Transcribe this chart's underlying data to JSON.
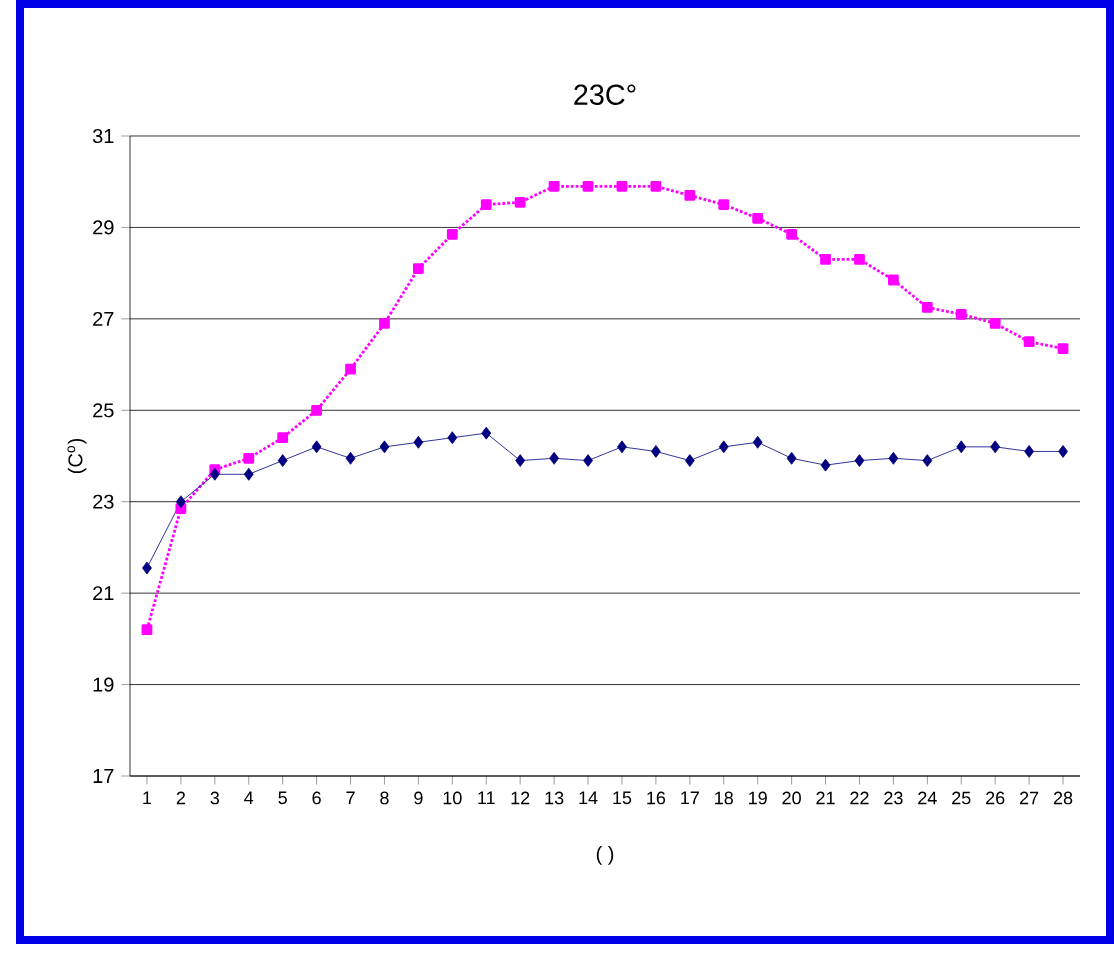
{
  "chart_data": {
    "type": "line",
    "title": "23C°",
    "ylabel": "(C$^{o}$)",
    "xlabel": "(   )",
    "categories": [
      "1",
      "2",
      "3",
      "4",
      "5",
      "6",
      "7",
      "8",
      "9",
      "10",
      "11",
      "12",
      "13",
      "14",
      "15",
      "16",
      "17",
      "18",
      "19",
      "20",
      "21",
      "22",
      "23",
      "24",
      "25",
      "26",
      "27",
      "28"
    ],
    "series": [
      {
        "color": "#000080",
        "marker": "diamond",
        "line_style": "solid",
        "values": [
          21.55,
          23.0,
          23.6,
          23.6,
          23.9,
          24.2,
          23.95,
          24.2,
          24.3,
          24.4,
          24.5,
          23.9,
          23.95,
          23.9,
          24.2,
          24.1,
          23.9,
          24.2,
          24.3,
          23.95,
          23.8,
          23.9,
          23.95,
          23.9,
          24.2,
          24.2,
          24.1,
          24.1
        ]
      },
      {
        "color": "#ff00ff",
        "marker": "square",
        "line_style": "dotted",
        "values": [
          20.2,
          22.85,
          23.7,
          23.95,
          24.4,
          25.0,
          25.9,
          26.9,
          28.1,
          28.85,
          29.5,
          29.55,
          29.9,
          29.9,
          29.9,
          29.9,
          29.7,
          29.5,
          29.2,
          28.85,
          28.3,
          28.3,
          27.85,
          27.25,
          27.1,
          26.9,
          26.5,
          26.35
        ]
      }
    ],
    "ylim": [
      17,
      31
    ],
    "yticks": [
      17,
      19,
      21,
      23,
      25,
      27,
      29,
      31
    ],
    "grid": "y"
  }
}
